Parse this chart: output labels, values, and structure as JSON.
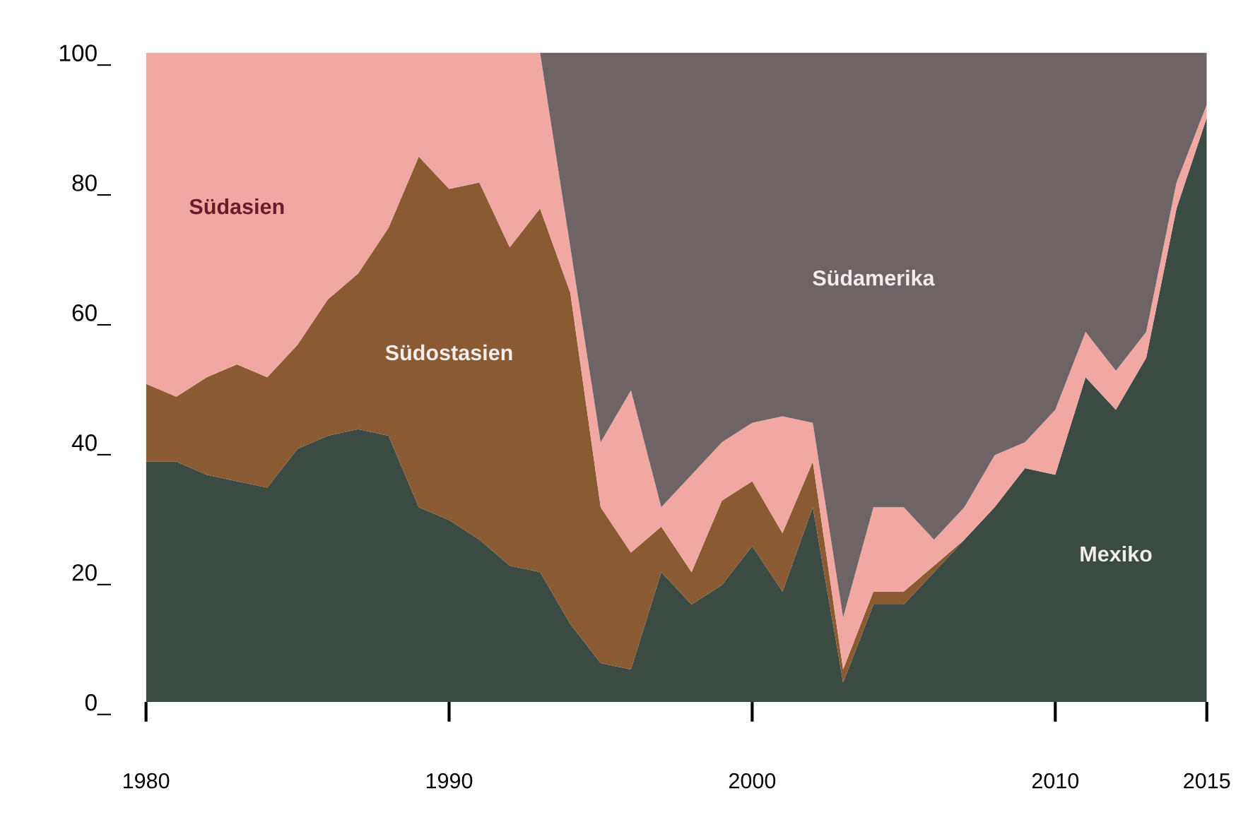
{
  "chart_data": {
    "type": "area",
    "stacked": true,
    "x": [
      1980,
      1981,
      1982,
      1983,
      1984,
      1985,
      1986,
      1987,
      1988,
      1989,
      1990,
      1991,
      1992,
      1993,
      1994,
      1995,
      1996,
      1997,
      1998,
      1999,
      2000,
      2001,
      2002,
      2003,
      2004,
      2005,
      2006,
      2007,
      2008,
      2009,
      2010,
      2011,
      2012,
      2013,
      2014,
      2015
    ],
    "series": [
      {
        "name": "Mexiko",
        "color": "#3c4a44",
        "values": [
          37,
          37,
          35,
          34,
          33,
          39,
          41,
          42,
          41,
          30,
          28,
          25,
          21,
          20,
          12,
          6,
          5,
          20,
          15,
          18,
          24,
          17,
          30,
          3,
          15,
          15,
          20,
          25,
          30,
          36,
          35,
          50,
          45,
          53,
          76,
          90
        ]
      },
      {
        "name": "Südostasien",
        "color": "#8a5a32",
        "values": [
          12,
          10,
          15,
          18,
          17,
          16,
          21,
          24,
          32,
          54,
          51,
          55,
          49,
          56,
          51,
          24,
          18,
          7,
          5,
          13,
          10,
          9,
          7,
          2,
          2,
          2,
          1,
          0,
          0,
          0,
          0,
          0,
          0,
          0,
          0,
          0
        ]
      },
      {
        "name": "Südasien",
        "color": "#f2a8a2",
        "values": [
          51,
          53,
          50,
          48,
          50,
          45,
          38,
          34,
          27,
          16,
          21,
          20,
          30,
          24,
          7,
          10,
          25,
          3,
          15,
          9,
          9,
          18,
          6,
          8,
          13,
          13,
          4,
          5,
          8,
          4,
          10,
          7,
          6,
          4,
          4,
          2
        ]
      },
      {
        "name": "Südamerika",
        "color": "#6e6466",
        "values": [
          0,
          0,
          0,
          0,
          0,
          0,
          0,
          0,
          0,
          0,
          0,
          0,
          0,
          0,
          30,
          60,
          52,
          70,
          65,
          60,
          57,
          56,
          57,
          87,
          70,
          70,
          75,
          70,
          62,
          60,
          55,
          43,
          49,
          43,
          20,
          8
        ]
      }
    ],
    "xlim": [
      1980,
      2015
    ],
    "xticks": [
      1980,
      1990,
      2000,
      2010,
      2015
    ],
    "ylim": [
      0,
      100
    ],
    "yticks": [
      {
        "value": 0,
        "label": "0_"
      },
      {
        "value": 20,
        "label": "20_"
      },
      {
        "value": 40,
        "label": "40_"
      },
      {
        "value": 60,
        "label": "60_"
      },
      {
        "value": 80,
        "label": "80_"
      },
      {
        "value": 100,
        "label": "100_"
      }
    ],
    "grid": false,
    "legend": false
  }
}
